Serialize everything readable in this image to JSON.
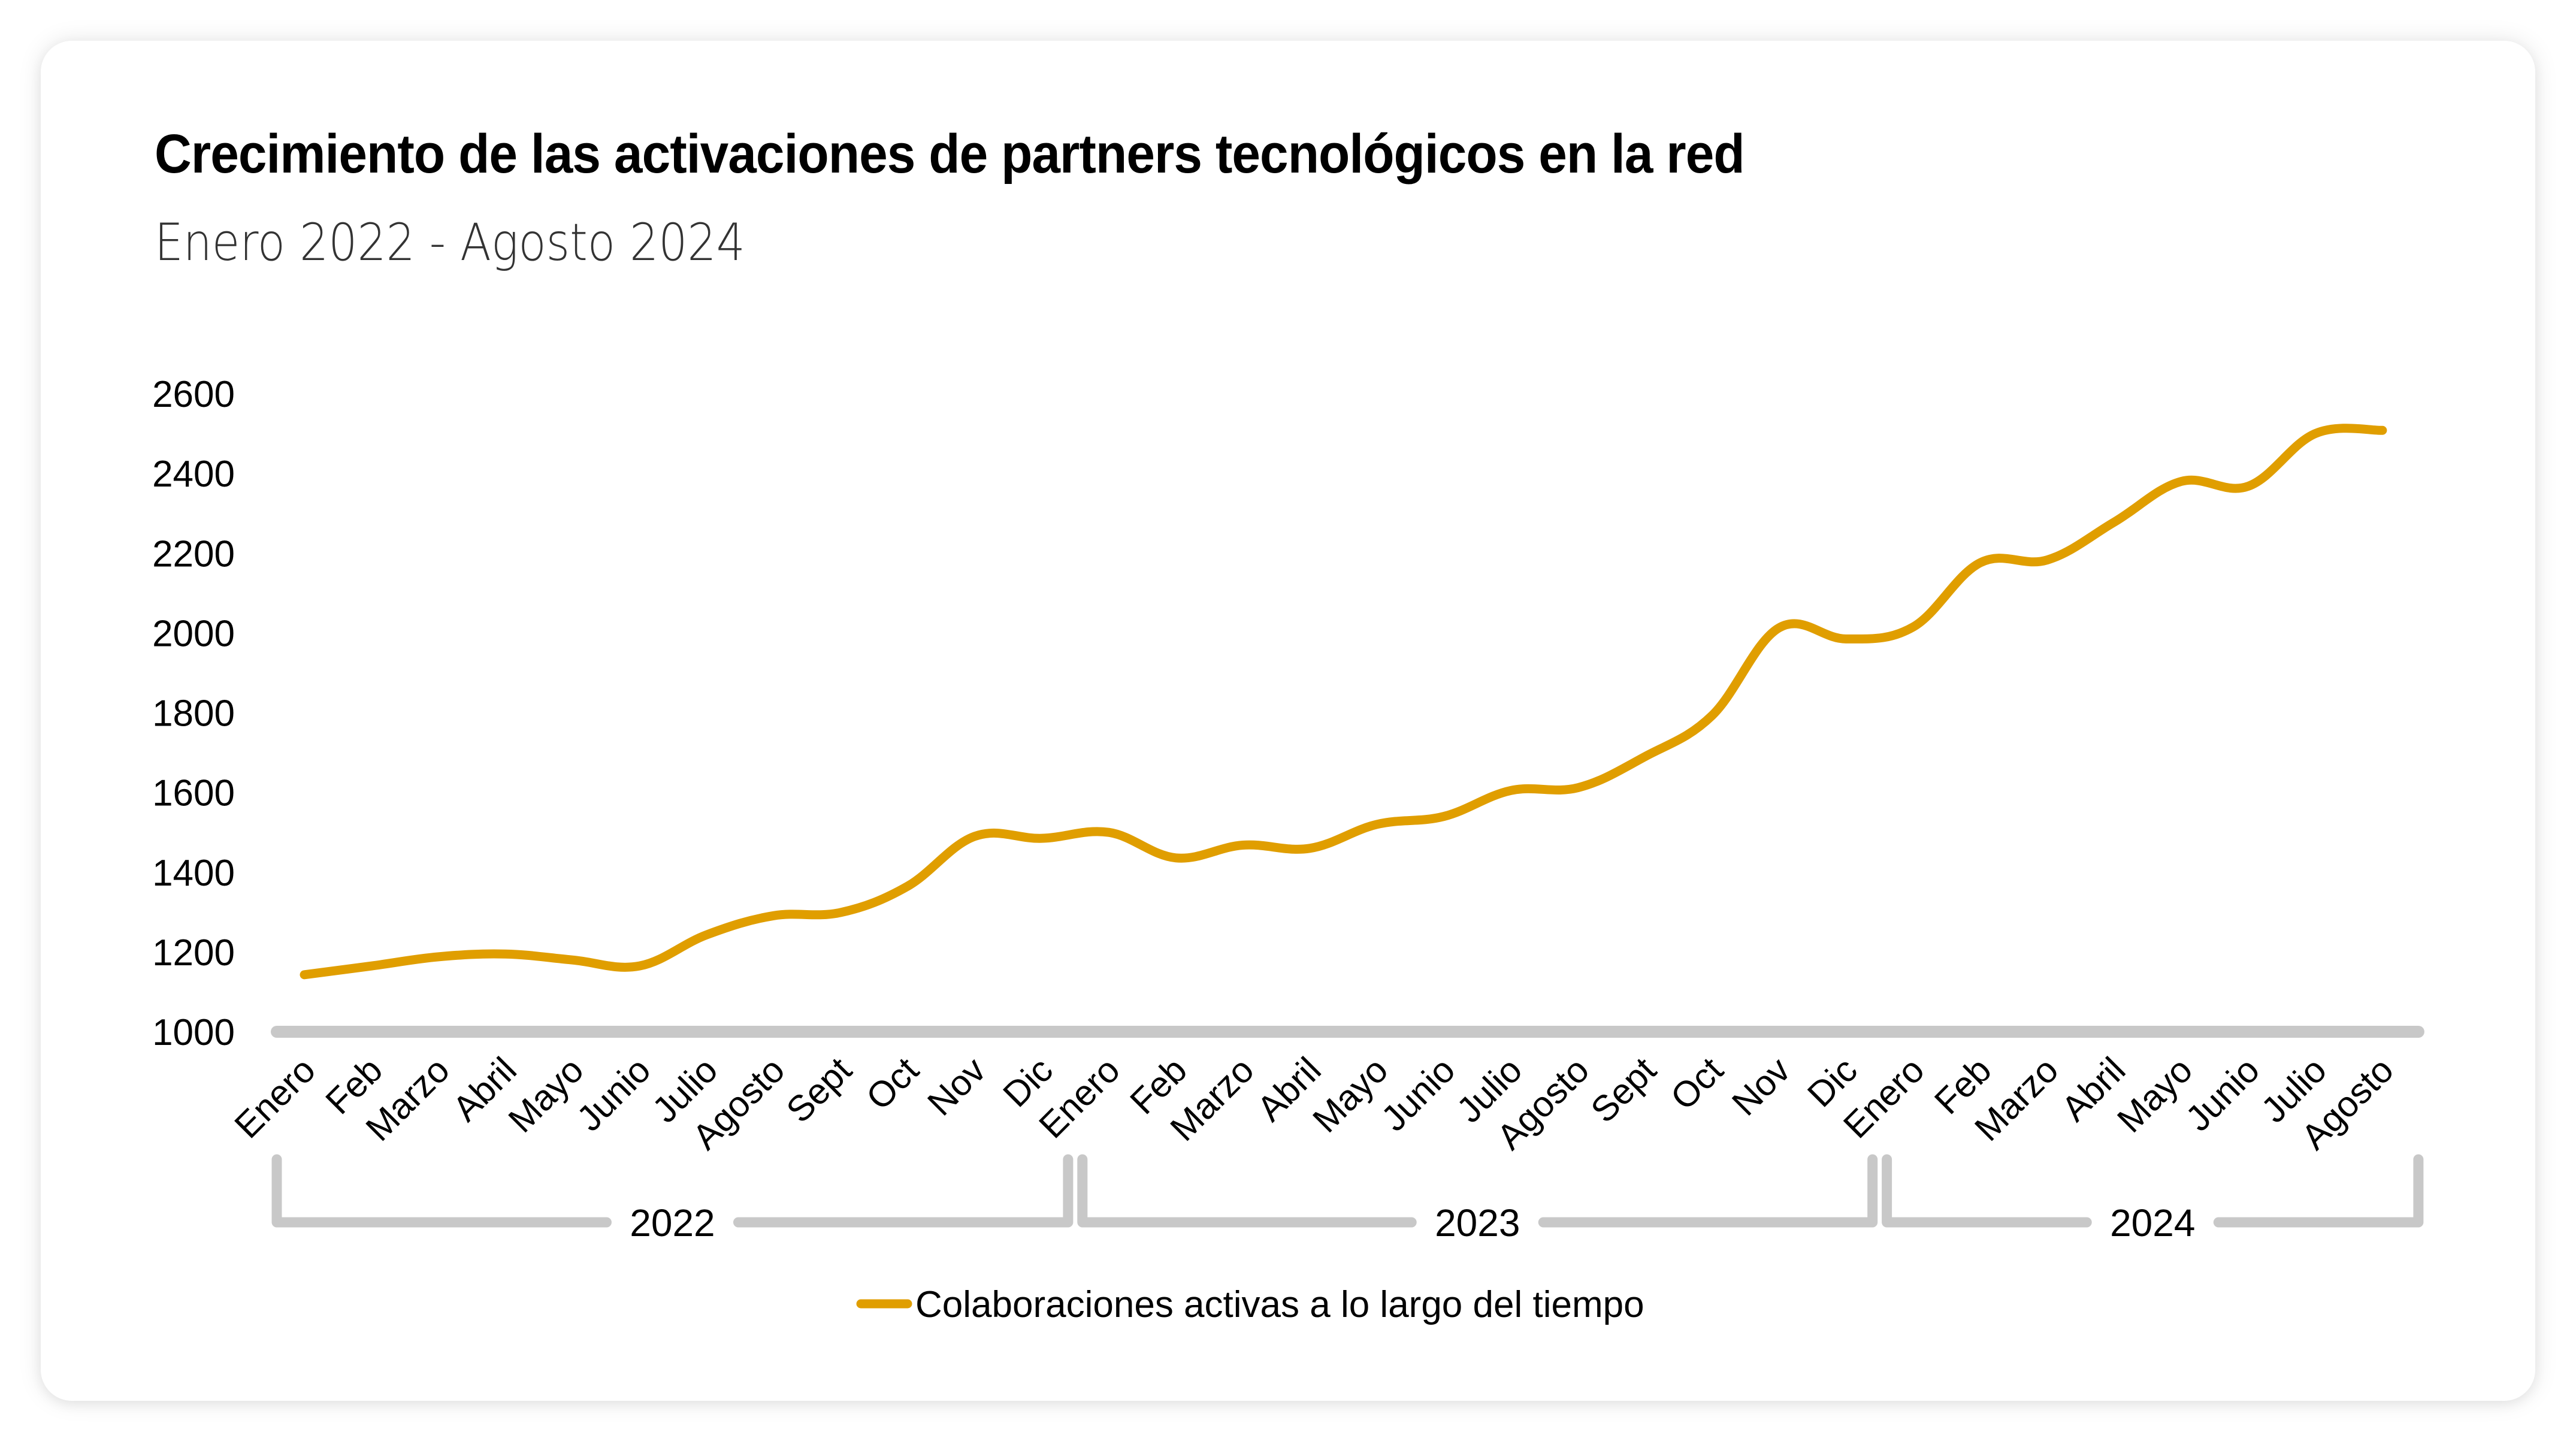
{
  "chart_data": {
    "type": "line",
    "title": "Crecimiento de las activaciones de partners tecnológicos en la red",
    "subtitle": "Enero 2022 - Agosto 2024",
    "xlabel": "",
    "ylabel": "",
    "ylim": [
      1000,
      2600
    ],
    "yticks": [
      1000,
      1200,
      1400,
      1600,
      1800,
      2000,
      2200,
      2400,
      2600
    ],
    "ytick_labels": [
      "1000",
      "1200",
      "1400",
      "1600",
      "1800",
      "2000",
      "2200",
      "2400",
      "2600"
    ],
    "grid": false,
    "legend_position": "bottom-center",
    "categories": [
      "Enero",
      "Feb",
      "Marzo",
      "Abril",
      "Mayo",
      "Junio",
      "Julio",
      "Agosto",
      "Sept",
      "Oct",
      "Nov",
      "Dic",
      "Enero",
      "Feb",
      "Marzo",
      "Abril",
      "Mayo",
      "Junio",
      "Julio",
      "Agosto",
      "Sept",
      "Oct",
      "Nov",
      "Dic",
      "Enero",
      "Feb",
      "Marzo",
      "Abril",
      "Mayo",
      "Junio",
      "Julio",
      "Agosto"
    ],
    "groups": [
      {
        "label": "2022",
        "start": 0,
        "end": 11
      },
      {
        "label": "2023",
        "start": 12,
        "end": 23
      },
      {
        "label": "2024",
        "start": 24,
        "end": 31
      }
    ],
    "series": [
      {
        "name": "Colaboraciones activas a lo largo del tiempo",
        "color": "#E09E00",
        "smooth": true,
        "values": [
          1143,
          1165,
          1188,
          1195,
          1180,
          1165,
          1243,
          1291,
          1299,
          1365,
          1490,
          1485,
          1500,
          1436,
          1468,
          1460,
          1520,
          1540,
          1605,
          1612,
          1690,
          1793,
          2013,
          1985,
          2015,
          2176,
          2183,
          2278,
          2380,
          2368,
          2500,
          2508
        ]
      }
    ]
  },
  "colors": {
    "line": "#E09E00",
    "axis": "#C8C8C8",
    "text": "#000000",
    "subtitle": "#333333"
  }
}
